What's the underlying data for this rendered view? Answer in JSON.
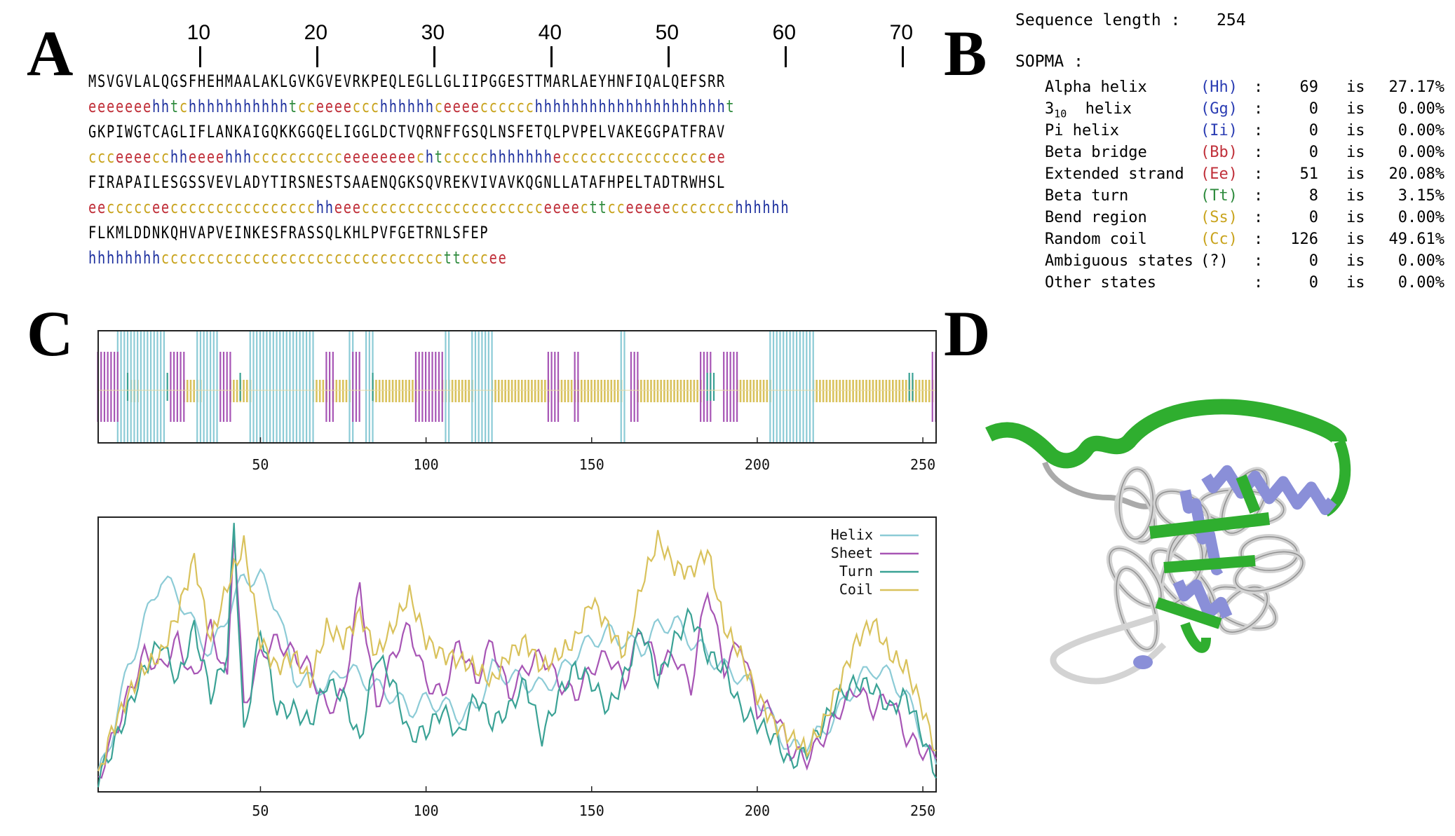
{
  "panels": {
    "a": "A",
    "b": "B",
    "c": "C",
    "d": "D"
  },
  "ruler": [
    10,
    20,
    30,
    40,
    50,
    60,
    70
  ],
  "sequence_rows": [
    {
      "aa": "MSVGVLALQGSFHEHMAALAKLGVKGVEVRKPEQLEGLLGLIIPGGESTTMARLAEYHNFIQALQEFSRR",
      "ss": "eeeeeeehhtchhhhhhhhhhhtcceeeeccchhhhhhceeeecccccchhhhhhhhhhhhhhhhhhhhht"
    },
    {
      "aa": "GKPIWGTCAGLIFLANKAIGQKKGGQELIGGLDCTVQRNFFGSQLNSFETQLPVPELVAKEGGPATFRAV",
      "ss": "ccceeeecchheeeehhhcccccccccceeeeeeeechtccccchhhhhhheccccccccccccccccee"
    },
    {
      "aa": "FIRAPAILESGSSVEVLADYTIRSNESTSAAENQGKSQVREKVIVAVKQGNLLATAFHPELTADTRWHSL",
      "ss": "eeccccceecccccccccccccccchheeecccccccccccccccccccceeeecttcceeeeeccccccchhhhhh"
    },
    {
      "aa": "FLKMLDDNKQHVAPVEINKESFRASSQLKHLPVFGETRNLSFEP",
      "ss": "hhhhhhhhcccccccccccccccccccccccccccccccttcccee"
    }
  ],
  "ss_colors": {
    "h": "#1c2f9e",
    "e": "#c0303a",
    "c": "#c9a41e",
    "t": "#2e8b3d"
  },
  "sopma": {
    "length_label": "Sequence length :",
    "length_value": "254",
    "title": "SOPMA :",
    "rows": [
      {
        "name": "Alpha helix",
        "code": "(Hh)",
        "code_color": "#2b3db3",
        "colon": ":",
        "count": "69",
        "is": "is",
        "pct": "27.17%"
      },
      {
        "name": "3 10  helix",
        "name_main": "3",
        "name_sub": "10",
        "name_rest": "  helix",
        "code": "(Gg)",
        "code_color": "#2b3db3",
        "colon": ":",
        "count": "0",
        "is": "is",
        "pct": "0.00%"
      },
      {
        "name": "Pi helix",
        "code": "(Ii)",
        "code_color": "#2b3db3",
        "colon": ":",
        "count": "0",
        "is": "is",
        "pct": "0.00%"
      },
      {
        "name": "Beta bridge",
        "code": "(Bb)",
        "code_color": "#c0303a",
        "colon": ":",
        "count": "0",
        "is": "is",
        "pct": "0.00%"
      },
      {
        "name": "Extended strand",
        "code": "(Ee)",
        "code_color": "#c0303a",
        "colon": ":",
        "count": "51",
        "is": "is",
        "pct": "20.08%"
      },
      {
        "name": "Beta turn",
        "code": "(Tt)",
        "code_color": "#2e8b3d",
        "colon": ":",
        "count": "8",
        "is": "is",
        "pct": "3.15%"
      },
      {
        "name": "Bend region",
        "code": "(Ss)",
        "code_color": "#c9a41e",
        "colon": ":",
        "count": "0",
        "is": "is",
        "pct": "0.00%"
      },
      {
        "name": "Random coil",
        "code": "(Cc)",
        "code_color": "#c9a41e",
        "colon": ":",
        "count": "126",
        "is": "is",
        "pct": "49.61%"
      },
      {
        "name": "Ambiguous states",
        "code": "(?)",
        "code_color": "#000000",
        "colon": ":",
        "count": "0",
        "is": "is",
        "pct": "0.00%"
      },
      {
        "name": "Other states",
        "code": "",
        "code_color": "#000000",
        "colon": ":",
        "count": "0",
        "is": "is",
        "pct": "0.00%"
      }
    ]
  },
  "chart_data": [
    {
      "type": "bar",
      "panel": "C-top",
      "xlim": [
        1,
        254
      ],
      "xticks": [
        50,
        100,
        150,
        200,
        250
      ],
      "series": [
        {
          "name": "helix",
          "color": "#8ccbd6",
          "ranges": [
            [
              7,
              8
            ],
            [
              9,
              11
            ],
            [
              12,
              21
            ],
            [
              31,
              37
            ],
            [
              47,
              66
            ],
            [
              77,
              78
            ],
            [
              82,
              84
            ],
            [
              106,
              107
            ],
            [
              114,
              120
            ],
            [
              159,
              160
            ],
            [
              204,
              217
            ]
          ]
        },
        {
          "name": "sheet",
          "color": "#a755b5",
          "ranges": [
            [
              1,
              7
            ],
            [
              23,
              27
            ],
            [
              38,
              41
            ],
            [
              70,
              72
            ],
            [
              78,
              80
            ],
            [
              97,
              105
            ],
            [
              137,
              140
            ],
            [
              145,
              146
            ],
            [
              162,
              164
            ],
            [
              183,
              186
            ],
            [
              190,
              194
            ],
            [
              253,
              254
            ]
          ]
        },
        {
          "name": "turn",
          "color": "#3aa295",
          "ranges": [
            [
              10,
              10
            ],
            [
              22,
              22
            ],
            [
              44,
              44
            ],
            [
              84,
              84
            ],
            [
              185,
              187
            ],
            [
              246,
              247
            ]
          ]
        },
        {
          "name": "coil",
          "color": "#d9c25c",
          "ranges": [
            [
              11,
              13
            ],
            [
              27,
              32
            ],
            [
              41,
              47
            ],
            [
              66,
              70
            ],
            [
              72,
              77
            ],
            [
              84,
              97
            ],
            [
              105,
              114
            ],
            [
              120,
              137
            ],
            [
              140,
              145
            ],
            [
              146,
              159
            ],
            [
              164,
              183
            ],
            [
              194,
              204
            ],
            [
              217,
              246
            ],
            [
              247,
              253
            ]
          ]
        }
      ]
    },
    {
      "type": "line",
      "panel": "C-bottom",
      "xlim": [
        1,
        254
      ],
      "ylim": [
        0,
        1
      ],
      "xticks": [
        50,
        100,
        150,
        200,
        250
      ],
      "legend_position": "top-right",
      "series": [
        {
          "name": "Helix",
          "color": "#8ccbd6",
          "x": [
            1,
            5,
            10,
            15,
            20,
            25,
            30,
            35,
            40,
            45,
            50,
            55,
            60,
            65,
            70,
            75,
            80,
            85,
            90,
            95,
            100,
            105,
            110,
            115,
            120,
            125,
            130,
            135,
            140,
            145,
            150,
            155,
            160,
            165,
            170,
            175,
            180,
            185,
            190,
            195,
            200,
            205,
            210,
            215,
            220,
            225,
            230,
            235,
            240,
            245,
            250,
            254
          ],
          "y": [
            0.05,
            0.2,
            0.45,
            0.62,
            0.78,
            0.72,
            0.6,
            0.5,
            0.65,
            0.78,
            0.78,
            0.68,
            0.42,
            0.4,
            0.38,
            0.45,
            0.42,
            0.38,
            0.35,
            0.3,
            0.33,
            0.32,
            0.28,
            0.3,
            0.45,
            0.42,
            0.4,
            0.38,
            0.42,
            0.5,
            0.55,
            0.58,
            0.55,
            0.52,
            0.6,
            0.62,
            0.55,
            0.5,
            0.45,
            0.42,
            0.35,
            0.25,
            0.15,
            0.18,
            0.22,
            0.3,
            0.4,
            0.45,
            0.42,
            0.35,
            0.2,
            0.1
          ]
        },
        {
          "name": "Sheet",
          "color": "#a755b5",
          "x": [
            1,
            5,
            10,
            15,
            20,
            25,
            30,
            35,
            40,
            42,
            45,
            50,
            55,
            60,
            65,
            70,
            75,
            80,
            85,
            90,
            95,
            100,
            105,
            110,
            115,
            120,
            125,
            130,
            135,
            140,
            145,
            150,
            155,
            160,
            165,
            170,
            175,
            180,
            185,
            190,
            195,
            200,
            205,
            210,
            215,
            220,
            225,
            230,
            235,
            240,
            245,
            250,
            254
          ],
          "y": [
            0.05,
            0.18,
            0.35,
            0.5,
            0.45,
            0.55,
            0.4,
            0.6,
            0.4,
            0.98,
            0.3,
            0.5,
            0.55,
            0.5,
            0.45,
            0.3,
            0.35,
            0.75,
            0.3,
            0.5,
            0.6,
            0.4,
            0.35,
            0.55,
            0.4,
            0.55,
            0.35,
            0.45,
            0.5,
            0.4,
            0.35,
            0.45,
            0.5,
            0.4,
            0.6,
            0.45,
            0.5,
            0.38,
            0.75,
            0.45,
            0.55,
            0.3,
            0.3,
            0.15,
            0.12,
            0.2,
            0.3,
            0.38,
            0.3,
            0.35,
            0.2,
            0.15,
            0.12
          ]
        },
        {
          "name": "Turn",
          "color": "#3aa295",
          "x": [
            1,
            5,
            10,
            15,
            20,
            25,
            30,
            35,
            40,
            42,
            45,
            50,
            55,
            60,
            65,
            70,
            75,
            80,
            85,
            90,
            95,
            100,
            105,
            110,
            115,
            120,
            125,
            130,
            135,
            140,
            145,
            150,
            155,
            160,
            165,
            170,
            175,
            180,
            185,
            190,
            195,
            200,
            205,
            210,
            215,
            220,
            225,
            230,
            235,
            240,
            245,
            250,
            254
          ],
          "y": [
            0.05,
            0.15,
            0.3,
            0.45,
            0.55,
            0.4,
            0.6,
            0.35,
            0.5,
            0.98,
            0.2,
            0.6,
            0.3,
            0.3,
            0.25,
            0.4,
            0.35,
            0.18,
            0.5,
            0.4,
            0.2,
            0.22,
            0.3,
            0.2,
            0.35,
            0.25,
            0.3,
            0.4,
            0.2,
            0.35,
            0.45,
            0.4,
            0.3,
            0.42,
            0.6,
            0.4,
            0.55,
            0.65,
            0.5,
            0.45,
            0.3,
            0.25,
            0.2,
            0.1,
            0.15,
            0.25,
            0.35,
            0.4,
            0.38,
            0.3,
            0.35,
            0.2,
            0.05
          ]
        },
        {
          "name": "Coil",
          "color": "#d9c25c",
          "x": [
            1,
            5,
            10,
            15,
            20,
            25,
            30,
            35,
            40,
            45,
            50,
            55,
            60,
            65,
            70,
            75,
            80,
            85,
            90,
            95,
            100,
            105,
            110,
            115,
            120,
            125,
            130,
            135,
            140,
            145,
            150,
            155,
            160,
            165,
            170,
            175,
            180,
            185,
            190,
            195,
            200,
            205,
            210,
            215,
            220,
            225,
            230,
            235,
            240,
            245,
            250,
            254
          ],
          "y": [
            0.05,
            0.22,
            0.35,
            0.45,
            0.5,
            0.65,
            0.85,
            0.55,
            0.75,
            0.9,
            0.55,
            0.45,
            0.5,
            0.4,
            0.6,
            0.55,
            0.65,
            0.5,
            0.6,
            0.72,
            0.55,
            0.5,
            0.48,
            0.45,
            0.4,
            0.5,
            0.55,
            0.45,
            0.5,
            0.55,
            0.7,
            0.6,
            0.5,
            0.75,
            0.92,
            0.82,
            0.8,
            0.88,
            0.6,
            0.5,
            0.35,
            0.25,
            0.2,
            0.15,
            0.25,
            0.4,
            0.55,
            0.62,
            0.5,
            0.45,
            0.3,
            0.15
          ]
        }
      ]
    }
  ],
  "structure_colors": {
    "helix": "#8a8fd8",
    "sheet": "#2fae2f",
    "coil": "#d3d3d3"
  }
}
